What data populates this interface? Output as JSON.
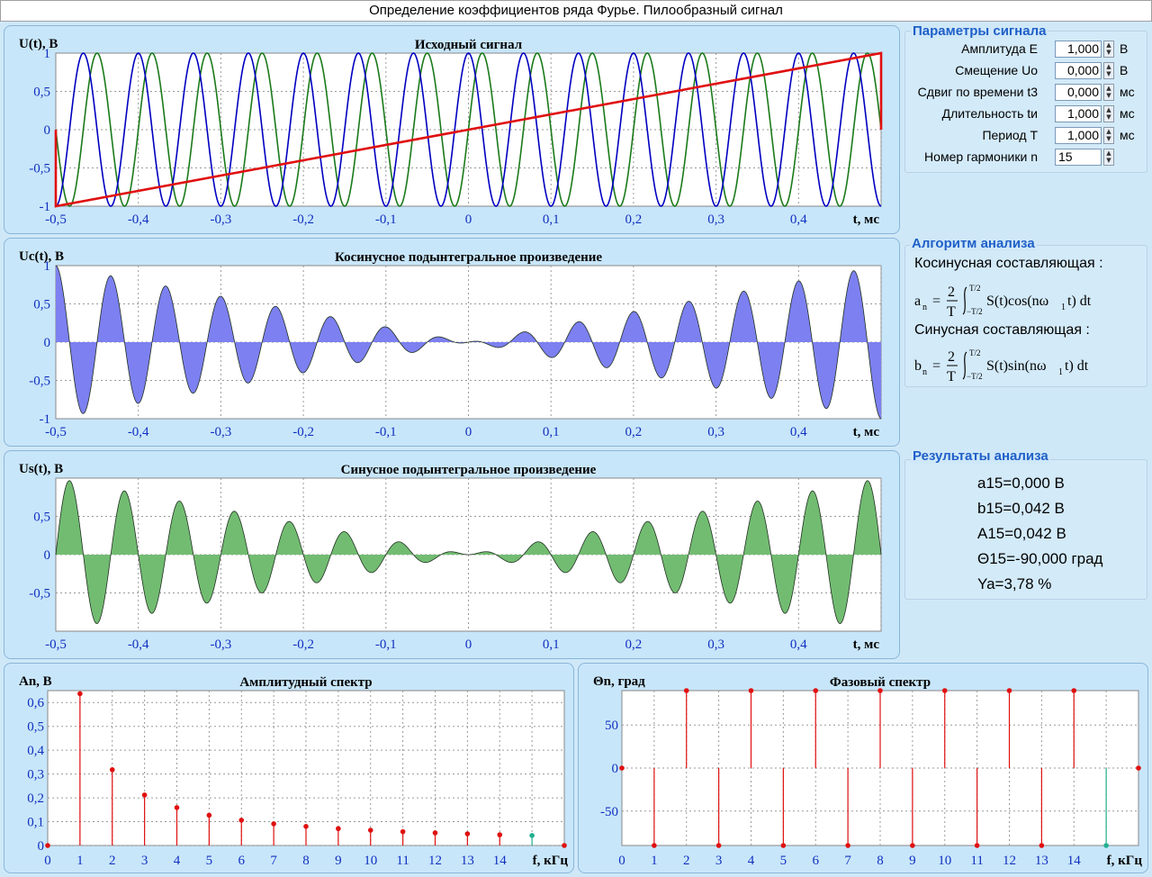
{
  "window": {
    "title": "Определение коэффициентов ряда Фурье. Пилообразный сигнал"
  },
  "colors": {
    "blue": "#0000c0",
    "green": "#1a7a1a",
    "red": "#e01010",
    "teal": "#20b090",
    "cos_fill": "#7d80f0",
    "sin_fill": "#72bc72"
  },
  "params": {
    "title": "Параметры сигнала",
    "rows": [
      {
        "label": "Амплитуда  E",
        "value": "1,000",
        "unit": "В"
      },
      {
        "label": "Смещение  Uo",
        "value": "0,000",
        "unit": "В"
      },
      {
        "label": "Сдвиг по времени  t3",
        "value": "0,000",
        "unit": "мс"
      },
      {
        "label": "Длительность  tи",
        "value": "1,000",
        "unit": "мс"
      },
      {
        "label": "Период  T",
        "value": "1,000",
        "unit": "мс"
      },
      {
        "label": "Номер гармоники  n",
        "value": "15",
        "unit": ""
      }
    ]
  },
  "algorithm": {
    "title": "Алгоритм анализа",
    "cos_heading": "Косинусная составляющая :",
    "sin_heading": "Синусная составляющая :",
    "cos_formula": "a_n = 2/T ∫_{−T/2}^{T/2} S(t)cos(nω₁t) dt",
    "sin_formula": "b_n = 2/T ∫_{−T/2}^{T/2} S(t)sin(nω₁t) dt"
  },
  "results": {
    "title": "Результаты анализа",
    "lines": [
      "a15=0,000 В",
      "b15=0,042 В",
      "A15=0,042 В",
      "Θ15=-90,000 град",
      "Ya=3,78 %"
    ]
  },
  "chart_data": [
    {
      "id": "source",
      "type": "line",
      "title": "Исходный сигнал",
      "ylabel": "U(t), В",
      "xlabel": "t, мс",
      "xlim": [
        -0.5,
        0.5
      ],
      "ylim": [
        -1,
        1
      ],
      "xticks": [
        "-0,5",
        "-0,4",
        "-0,3",
        "-0,2",
        "-0,1",
        "0",
        "0,1",
        "0,2",
        "0,3",
        "0,4"
      ],
      "yticks": [
        "1",
        "0,5",
        "0",
        "-0,5",
        "-1"
      ],
      "grid": true,
      "series": [
        {
          "role": "cos(2π·15·t)",
          "color": "#0000c0",
          "harmonic": 15,
          "fn": "cos"
        },
        {
          "role": "sin(2π·15·t)",
          "color": "#1a7a1a",
          "harmonic": 15,
          "fn": "sin"
        },
        {
          "role": "sawtooth",
          "color": "#e01010",
          "points": [
            [
              -0.5,
              0
            ],
            [
              -0.5,
              -1
            ],
            [
              0.5,
              1
            ],
            [
              0.5,
              0
            ]
          ]
        }
      ]
    },
    {
      "id": "cos_product",
      "type": "area",
      "title": "Косинусное подынтегральное произведение",
      "ylabel": "Uc(t), В",
      "xlabel": "t, мс",
      "xlim": [
        -0.5,
        0.5
      ],
      "ylim": [
        -1,
        1
      ],
      "xticks": [
        "-0,5",
        "-0,4",
        "-0,3",
        "-0,2",
        "-0,1",
        "0",
        "0,1",
        "0,2",
        "0,3",
        "0,4"
      ],
      "yticks": [
        "1",
        "0,5",
        "0",
        "-0,5",
        "-1"
      ],
      "grid": true,
      "function": "2t·cos(2π·15·t)",
      "harmonic": 15
    },
    {
      "id": "sin_product",
      "type": "area",
      "title": "Синусное подынтегральное произведение",
      "ylabel": "Us(t), В",
      "xlabel": "t, мс",
      "xlim": [
        -0.5,
        0.5
      ],
      "ylim": [
        -1,
        1
      ],
      "xticks": [
        "-0,5",
        "-0,4",
        "-0,3",
        "-0,2",
        "-0,1",
        "0",
        "0,1",
        "0,2",
        "0,3",
        "0,4"
      ],
      "yticks": [
        "0,5",
        "0",
        "-0,5"
      ],
      "grid": true,
      "function": "2t·sin(2π·15·t)",
      "harmonic": 15
    },
    {
      "id": "amplitude",
      "type": "stem",
      "title": "Амплитудный спектр",
      "ylabel": "An, В",
      "xlabel": "f, кГц",
      "xlim": [
        0,
        16
      ],
      "ylim": [
        0,
        0.65
      ],
      "xticks": [
        "0",
        "1",
        "2",
        "3",
        "4",
        "5",
        "6",
        "7",
        "8",
        "9",
        "10",
        "11",
        "12",
        "13",
        "14"
      ],
      "yticks": [
        "0,6",
        "0,5",
        "0,4",
        "0,3",
        "0,2",
        "0,1",
        "0"
      ],
      "grid": true,
      "x": [
        0,
        1,
        2,
        3,
        4,
        5,
        6,
        7,
        8,
        9,
        10,
        11,
        12,
        13,
        14,
        15,
        16
      ],
      "values": [
        0,
        0.637,
        0.318,
        0.212,
        0.159,
        0.127,
        0.106,
        0.091,
        0.08,
        0.071,
        0.064,
        0.058,
        0.053,
        0.049,
        0.045,
        0.042,
        0.0
      ],
      "highlight": 15
    },
    {
      "id": "phase",
      "type": "stem",
      "title": "Фазовый спектр",
      "ylabel": "Θn, град",
      "xlabel": "f, кГц",
      "xlim": [
        0,
        16
      ],
      "ylim": [
        -90,
        90
      ],
      "xticks": [
        "0",
        "1",
        "2",
        "3",
        "4",
        "5",
        "6",
        "7",
        "8",
        "9",
        "10",
        "11",
        "12",
        "13",
        "14"
      ],
      "yticks": [
        "50",
        "0",
        "-50"
      ],
      "grid": true,
      "x": [
        0,
        1,
        2,
        3,
        4,
        5,
        6,
        7,
        8,
        9,
        10,
        11,
        12,
        13,
        14,
        15,
        16
      ],
      "values": [
        0,
        -90,
        90,
        -90,
        90,
        -90,
        90,
        -90,
        90,
        -90,
        90,
        -90,
        90,
        -90,
        90,
        -90,
        0
      ],
      "highlight": 15
    }
  ]
}
